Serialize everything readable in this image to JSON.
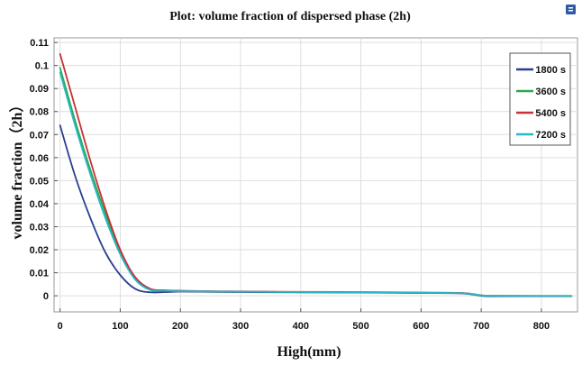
{
  "header": {
    "corner_icon": "document-icon"
  },
  "chart_data": {
    "type": "line",
    "title": "Plot: volume fraction of dispersed phase (2h)",
    "xlabel": "High(mm)",
    "ylabel": "volume fraction（2h）",
    "xlim": [
      -10,
      860
    ],
    "ylim": [
      -0.007,
      0.112
    ],
    "x_ticks": [
      0,
      100,
      200,
      300,
      400,
      500,
      600,
      700,
      800
    ],
    "x_tick_labels": [
      "0",
      "100",
      "200",
      "300",
      "400",
      "500",
      "600",
      "700",
      "800"
    ],
    "y_ticks": [
      0,
      0.01,
      0.02,
      0.03,
      0.04,
      0.05,
      0.06,
      0.07,
      0.08,
      0.09,
      0.1,
      0.11
    ],
    "y_tick_labels": [
      "0",
      "0.01",
      "0.02",
      "0.03",
      "0.04",
      "0.05",
      "0.06",
      "0.07",
      "0.08",
      "0.09",
      "0.1",
      "0.11"
    ],
    "grid": true,
    "legend_position": "top-right",
    "x": [
      0,
      25,
      50,
      75,
      100,
      125,
      150,
      175,
      200,
      250,
      300,
      400,
      500,
      600,
      670,
      700,
      720,
      800,
      850
    ],
    "series": [
      {
        "name": "1800 s",
        "color": "#2a3f8f",
        "values": [
          0.074,
          0.052,
          0.034,
          0.019,
          0.009,
          0.003,
          0.0015,
          0.0016,
          0.0018,
          0.0017,
          0.0016,
          0.0015,
          0.0014,
          0.0012,
          0.001,
          0.0,
          -0.0002,
          -0.0002,
          -0.0002
        ]
      },
      {
        "name": "3600 s",
        "color": "#2aa84a",
        "values": [
          0.099,
          0.076,
          0.055,
          0.036,
          0.019,
          0.008,
          0.003,
          0.0023,
          0.0021,
          0.0019,
          0.0018,
          0.0016,
          0.0015,
          0.0013,
          0.0011,
          0.0002,
          0.0,
          0.0,
          0.0
        ]
      },
      {
        "name": "5400 s",
        "color": "#c8303a",
        "values": [
          0.105,
          0.082,
          0.059,
          0.038,
          0.02,
          0.008,
          0.003,
          0.0024,
          0.0022,
          0.002,
          0.0019,
          0.0017,
          0.0016,
          0.0014,
          0.0012,
          0.0002,
          0.0,
          -0.0001,
          -0.0001
        ]
      },
      {
        "name": "7200 s",
        "color": "#28b8c8",
        "values": [
          0.097,
          0.074,
          0.053,
          0.034,
          0.018,
          0.007,
          0.0025,
          0.0022,
          0.002,
          0.0019,
          0.0018,
          0.0016,
          0.0015,
          0.0013,
          0.0011,
          0.0002,
          0.0,
          -0.0001,
          -0.0001
        ]
      }
    ]
  }
}
